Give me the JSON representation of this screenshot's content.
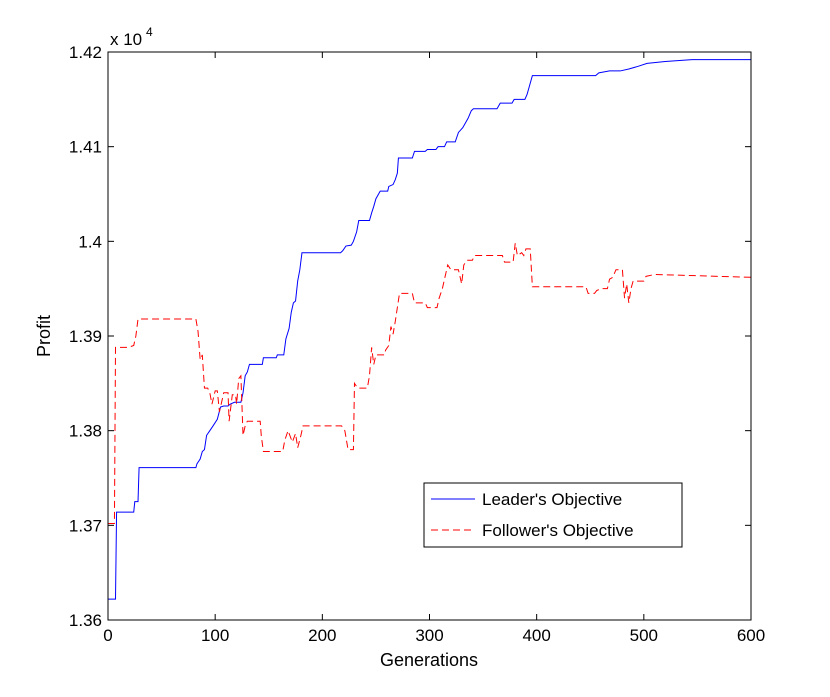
{
  "chart_data": {
    "type": "line",
    "title": "",
    "xlabel": "Generations",
    "ylabel": "Profit",
    "multiplier_base": "x 10",
    "multiplier_exp": "4",
    "xlim": [
      0,
      600
    ],
    "ylim": [
      1.36,
      1.42
    ],
    "x_ticks": [
      0,
      100,
      200,
      300,
      400,
      500,
      600
    ],
    "x_tick_labels": [
      "0",
      "100",
      "200",
      "300",
      "400",
      "500",
      "600"
    ],
    "y_ticks": [
      1.36,
      1.37,
      1.38,
      1.39,
      1.4,
      1.41,
      1.42
    ],
    "y_tick_labels": [
      "1.36",
      "1.37",
      "1.38",
      "1.39",
      "1.4",
      "1.41",
      "1.42"
    ],
    "grid": false,
    "legend_position": "lower-right",
    "series": [
      {
        "name": "Leader's Objective",
        "color": "#0000ff",
        "dash": "solid",
        "points": [
          [
            0,
            1.3622
          ],
          [
            7,
            1.3622
          ],
          [
            8,
            1.3714
          ],
          [
            24,
            1.3714
          ],
          [
            25,
            1.3725
          ],
          [
            28,
            1.3725
          ],
          [
            29,
            1.3761
          ],
          [
            82,
            1.3761
          ],
          [
            83,
            1.3765
          ],
          [
            86,
            1.377
          ],
          [
            88,
            1.3778
          ],
          [
            90,
            1.378
          ],
          [
            92,
            1.3795
          ],
          [
            95,
            1.38
          ],
          [
            98,
            1.3805
          ],
          [
            102,
            1.3812
          ],
          [
            105,
            1.3825
          ],
          [
            108,
            1.3826
          ],
          [
            112,
            1.3826
          ],
          [
            114,
            1.3828
          ],
          [
            118,
            1.383
          ],
          [
            124,
            1.383
          ],
          [
            126,
            1.384
          ],
          [
            128,
            1.3858
          ],
          [
            130,
            1.3862
          ],
          [
            132,
            1.387
          ],
          [
            144,
            1.387
          ],
          [
            145,
            1.3877
          ],
          [
            157,
            1.3877
          ],
          [
            158,
            1.388
          ],
          [
            164,
            1.388
          ],
          [
            166,
            1.3897
          ],
          [
            169,
            1.3908
          ],
          [
            171,
            1.3925
          ],
          [
            173,
            1.3935
          ],
          [
            175,
            1.3937
          ],
          [
            177,
            1.3958
          ],
          [
            179,
            1.397
          ],
          [
            181,
            1.3988
          ],
          [
            217,
            1.3988
          ],
          [
            219,
            1.399
          ],
          [
            222,
            1.3995
          ],
          [
            227,
            1.3996
          ],
          [
            229,
            1.4
          ],
          [
            232,
            1.401
          ],
          [
            234,
            1.4022
          ],
          [
            244,
            1.4022
          ],
          [
            246,
            1.403
          ],
          [
            248,
            1.4037
          ],
          [
            250,
            1.4045
          ],
          [
            254,
            1.4053
          ],
          [
            261,
            1.4053
          ],
          [
            262,
            1.4058
          ],
          [
            266,
            1.406
          ],
          [
            268,
            1.4065
          ],
          [
            270,
            1.4072
          ],
          [
            271,
            1.4088
          ],
          [
            284,
            1.4088
          ],
          [
            286,
            1.4095
          ],
          [
            296,
            1.4095
          ],
          [
            298,
            1.4097
          ],
          [
            306,
            1.4097
          ],
          [
            308,
            1.41
          ],
          [
            314,
            1.41
          ],
          [
            316,
            1.4105
          ],
          [
            324,
            1.4105
          ],
          [
            327,
            1.4115
          ],
          [
            331,
            1.412
          ],
          [
            336,
            1.413
          ],
          [
            339,
            1.4138
          ],
          [
            341,
            1.414
          ],
          [
            363,
            1.414
          ],
          [
            364,
            1.4142
          ],
          [
            366,
            1.4146
          ],
          [
            377,
            1.4146
          ],
          [
            379,
            1.415
          ],
          [
            389,
            1.415
          ],
          [
            391,
            1.4155
          ],
          [
            396,
            1.4175
          ],
          [
            455,
            1.4175
          ],
          [
            458,
            1.4178
          ],
          [
            468,
            1.418
          ],
          [
            478,
            1.418
          ],
          [
            486,
            1.4182
          ],
          [
            495,
            1.4185
          ],
          [
            503,
            1.4188
          ],
          [
            520,
            1.419
          ],
          [
            545,
            1.4192
          ],
          [
            600,
            1.4192
          ]
        ]
      },
      {
        "name": "Follower's Objective",
        "color": "#ff0000",
        "dash": "dashed",
        "points": [
          [
            0,
            1.3702
          ],
          [
            6,
            1.3702
          ],
          [
            7,
            1.3888
          ],
          [
            18,
            1.3888
          ],
          [
            19,
            1.3888
          ],
          [
            24,
            1.389
          ],
          [
            26,
            1.39
          ],
          [
            28,
            1.3918
          ],
          [
            82,
            1.3918
          ],
          [
            84,
            1.3905
          ],
          [
            86,
            1.3875
          ],
          [
            88,
            1.388
          ],
          [
            90,
            1.3845
          ],
          [
            93,
            1.3845
          ],
          [
            95,
            1.384
          ],
          [
            97,
            1.3828
          ],
          [
            100,
            1.3842
          ],
          [
            102,
            1.3842
          ],
          [
            104,
            1.382
          ],
          [
            108,
            1.384
          ],
          [
            112,
            1.384
          ],
          [
            113,
            1.381
          ],
          [
            116,
            1.3838
          ],
          [
            119,
            1.3838
          ],
          [
            120,
            1.3828
          ],
          [
            122,
            1.3855
          ],
          [
            124,
            1.3858
          ],
          [
            126,
            1.3795
          ],
          [
            128,
            1.3805
          ],
          [
            130,
            1.381
          ],
          [
            142,
            1.381
          ],
          [
            143,
            1.3795
          ],
          [
            145,
            1.3778
          ],
          [
            163,
            1.3778
          ],
          [
            165,
            1.379
          ],
          [
            168,
            1.38
          ],
          [
            172,
            1.3788
          ],
          [
            175,
            1.3797
          ],
          [
            177,
            1.3782
          ],
          [
            180,
            1.3795
          ],
          [
            182,
            1.3805
          ],
          [
            218,
            1.3805
          ],
          [
            221,
            1.38
          ],
          [
            224,
            1.378
          ],
          [
            229,
            1.378
          ],
          [
            230,
            1.385
          ],
          [
            233,
            1.3845
          ],
          [
            242,
            1.3845
          ],
          [
            244,
            1.3858
          ],
          [
            246,
            1.3888
          ],
          [
            248,
            1.387
          ],
          [
            250,
            1.388
          ],
          [
            258,
            1.388
          ],
          [
            259,
            1.3885
          ],
          [
            262,
            1.389
          ],
          [
            264,
            1.391
          ],
          [
            266,
            1.3902
          ],
          [
            268,
            1.3915
          ],
          [
            270,
            1.393
          ],
          [
            272,
            1.3945
          ],
          [
            284,
            1.3945
          ],
          [
            286,
            1.3935
          ],
          [
            296,
            1.3935
          ],
          [
            298,
            1.393
          ],
          [
            307,
            1.393
          ],
          [
            309,
            1.394
          ],
          [
            312,
            1.395
          ],
          [
            315,
            1.3965
          ],
          [
            317,
            1.3975
          ],
          [
            320,
            1.397
          ],
          [
            327,
            1.397
          ],
          [
            330,
            1.3955
          ],
          [
            332,
            1.3975
          ],
          [
            335,
            1.398
          ],
          [
            340,
            1.398
          ],
          [
            342,
            1.3985
          ],
          [
            368,
            1.3985
          ],
          [
            370,
            1.3978
          ],
          [
            378,
            1.3978
          ],
          [
            380,
            1.3998
          ],
          [
            382,
            1.3985
          ],
          [
            386,
            1.3988
          ],
          [
            388,
            1.3985
          ],
          [
            390,
            1.3992
          ],
          [
            394,
            1.3992
          ],
          [
            396,
            1.3952
          ],
          [
            446,
            1.3952
          ],
          [
            448,
            1.3945
          ],
          [
            454,
            1.3945
          ],
          [
            456,
            1.3948
          ],
          [
            460,
            1.395
          ],
          [
            466,
            1.395
          ],
          [
            468,
            1.396
          ],
          [
            471,
            1.3962
          ],
          [
            474,
            1.397
          ],
          [
            480,
            1.397
          ],
          [
            482,
            1.394
          ],
          [
            484,
            1.3955
          ],
          [
            486,
            1.3935
          ],
          [
            488,
            1.395
          ],
          [
            490,
            1.3958
          ],
          [
            500,
            1.3958
          ],
          [
            502,
            1.3963
          ],
          [
            510,
            1.3965
          ],
          [
            600,
            1.3962
          ]
        ]
      }
    ]
  }
}
